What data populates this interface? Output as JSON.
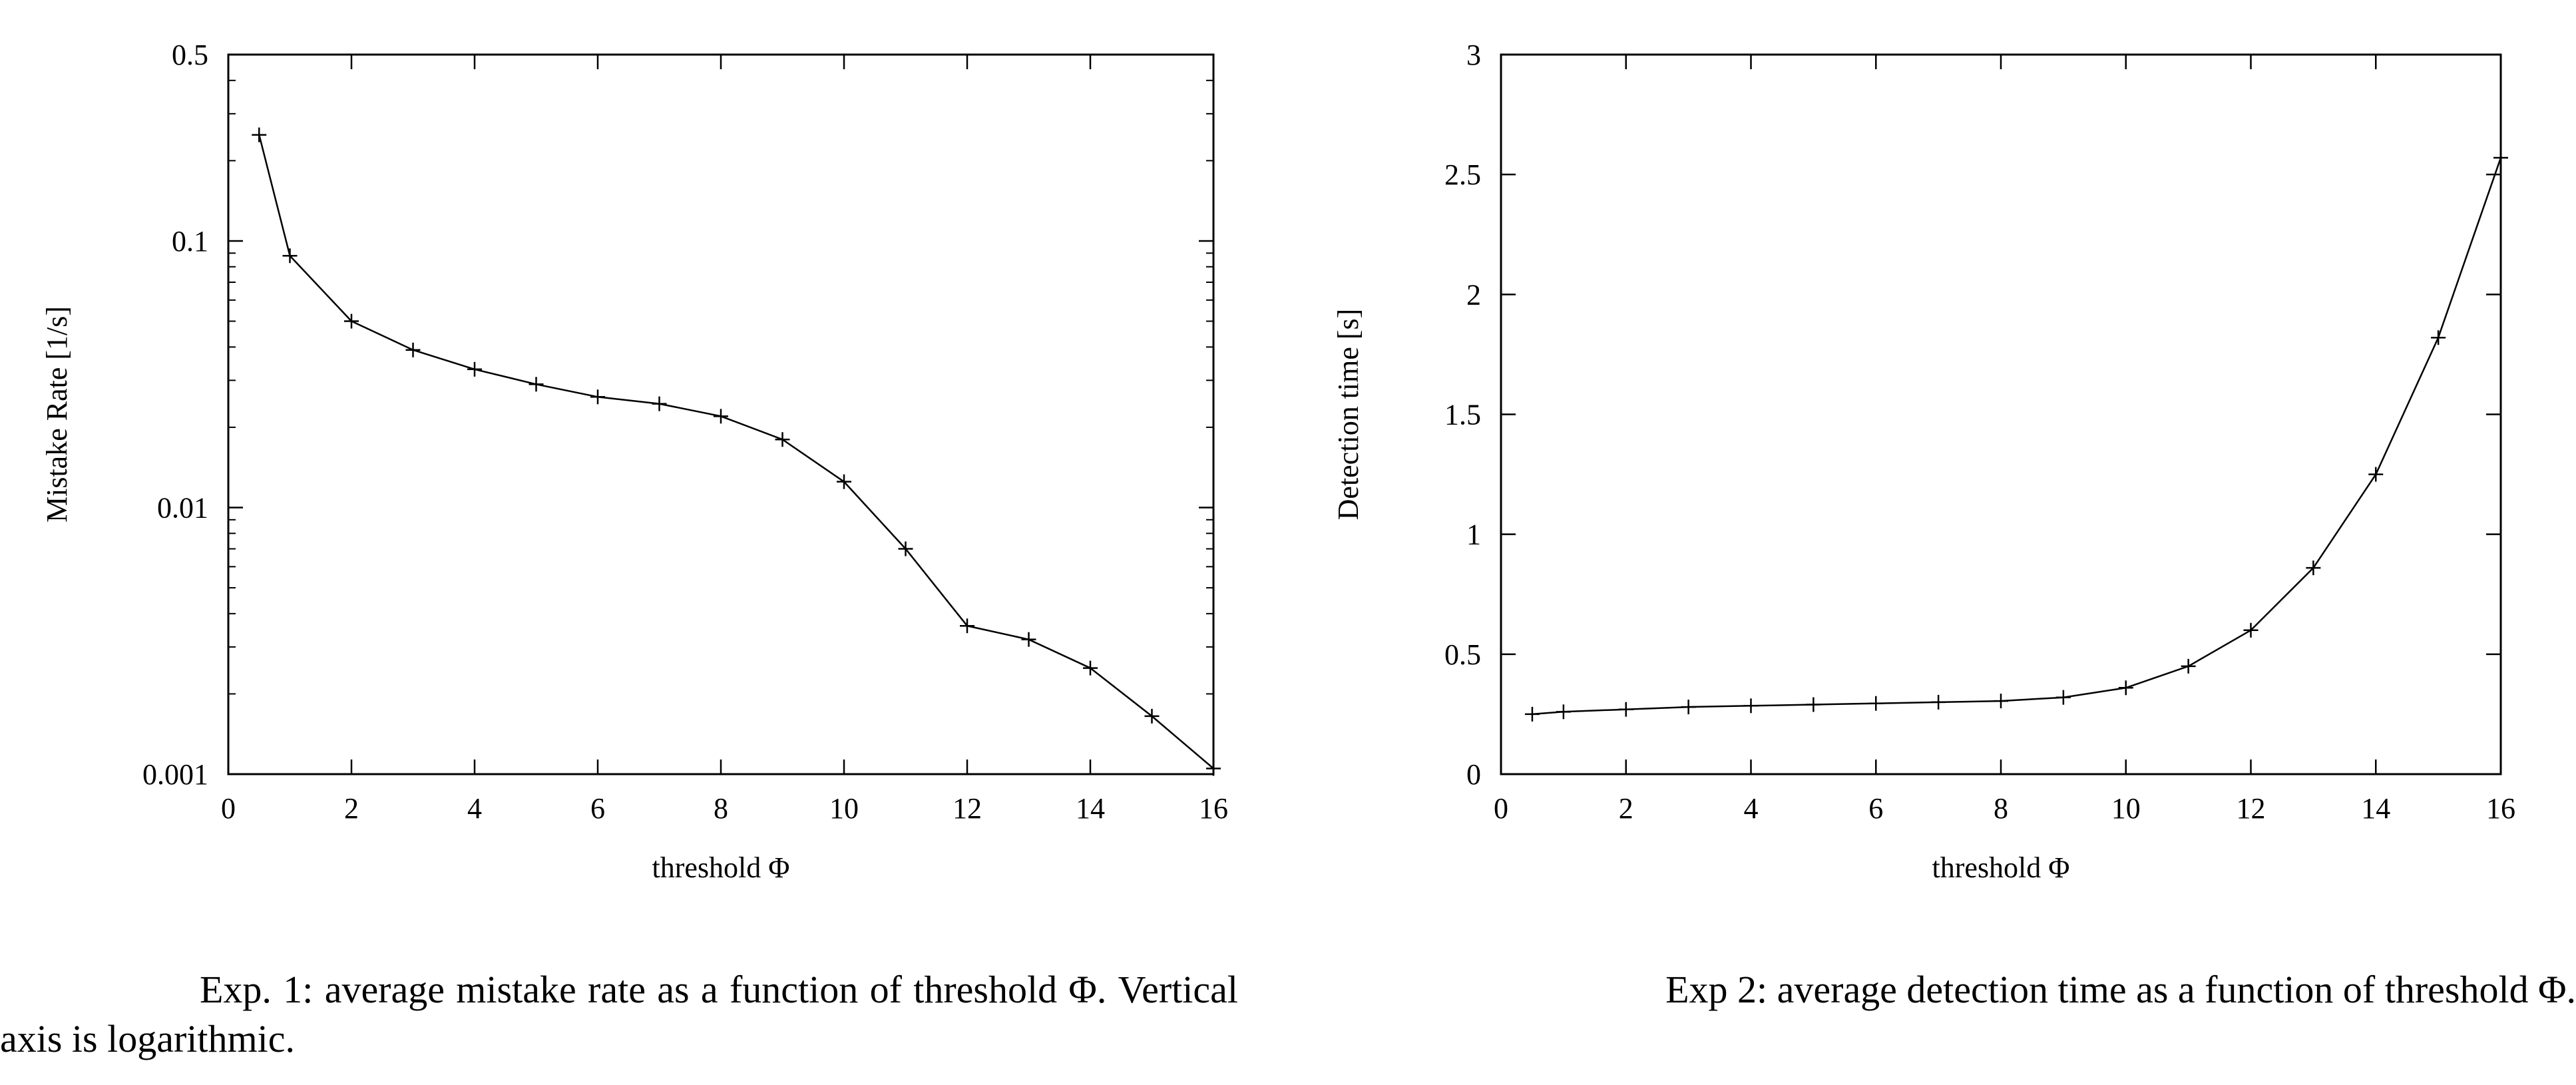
{
  "chart_data": [
    {
      "type": "line",
      "xlabel": "threshold Φ",
      "ylabel": "Mistake Rate [1/s]",
      "yscale": "log",
      "xlim": [
        0,
        16
      ],
      "ylim": [
        0.001,
        0.5
      ],
      "xticks": [
        0,
        2,
        4,
        6,
        8,
        10,
        12,
        14,
        16
      ],
      "yticks": [
        0.001,
        0.01,
        0.1,
        0.5
      ],
      "ytick_labels": [
        "0.001",
        "0.01",
        "0.1",
        "0.5"
      ],
      "marker": "plus",
      "grid": false,
      "legend": "none",
      "x": [
        0.5,
        1,
        2,
        3,
        4,
        5,
        6,
        7,
        8,
        9,
        10,
        11,
        12,
        13,
        14,
        15,
        16
      ],
      "values": [
        0.25,
        0.088,
        0.05,
        0.039,
        0.033,
        0.029,
        0.026,
        0.0245,
        0.022,
        0.018,
        0.0125,
        0.007,
        0.0036,
        0.0032,
        0.0025,
        0.00165,
        0.00105
      ]
    },
    {
      "type": "line",
      "xlabel": "threshold Φ",
      "ylabel": "Detection time [s]",
      "yscale": "linear",
      "xlim": [
        0,
        16
      ],
      "ylim": [
        0,
        3
      ],
      "xticks": [
        0,
        2,
        4,
        6,
        8,
        10,
        12,
        14,
        16
      ],
      "yticks": [
        0,
        0.5,
        1,
        1.5,
        2,
        2.5,
        3
      ],
      "ytick_labels": [
        "0",
        "0.5",
        "1",
        "1.5",
        "2",
        "2.5",
        "3"
      ],
      "marker": "plus",
      "grid": false,
      "legend": "none",
      "x": [
        0.5,
        1,
        2,
        3,
        4,
        5,
        6,
        7,
        8,
        9,
        10,
        11,
        12,
        13,
        14,
        15,
        16
      ],
      "values": [
        0.25,
        0.26,
        0.27,
        0.28,
        0.285,
        0.29,
        0.295,
        0.3,
        0.305,
        0.32,
        0.36,
        0.45,
        0.6,
        0.86,
        1.25,
        1.82,
        2.57
      ]
    }
  ],
  "captions": {
    "exp1": "Exp. 1: average mistake rate as a function of threshold Φ. Vertical axis is logarithmic.",
    "exp2": "Exp 2: average detection time as a function of threshold Φ."
  }
}
